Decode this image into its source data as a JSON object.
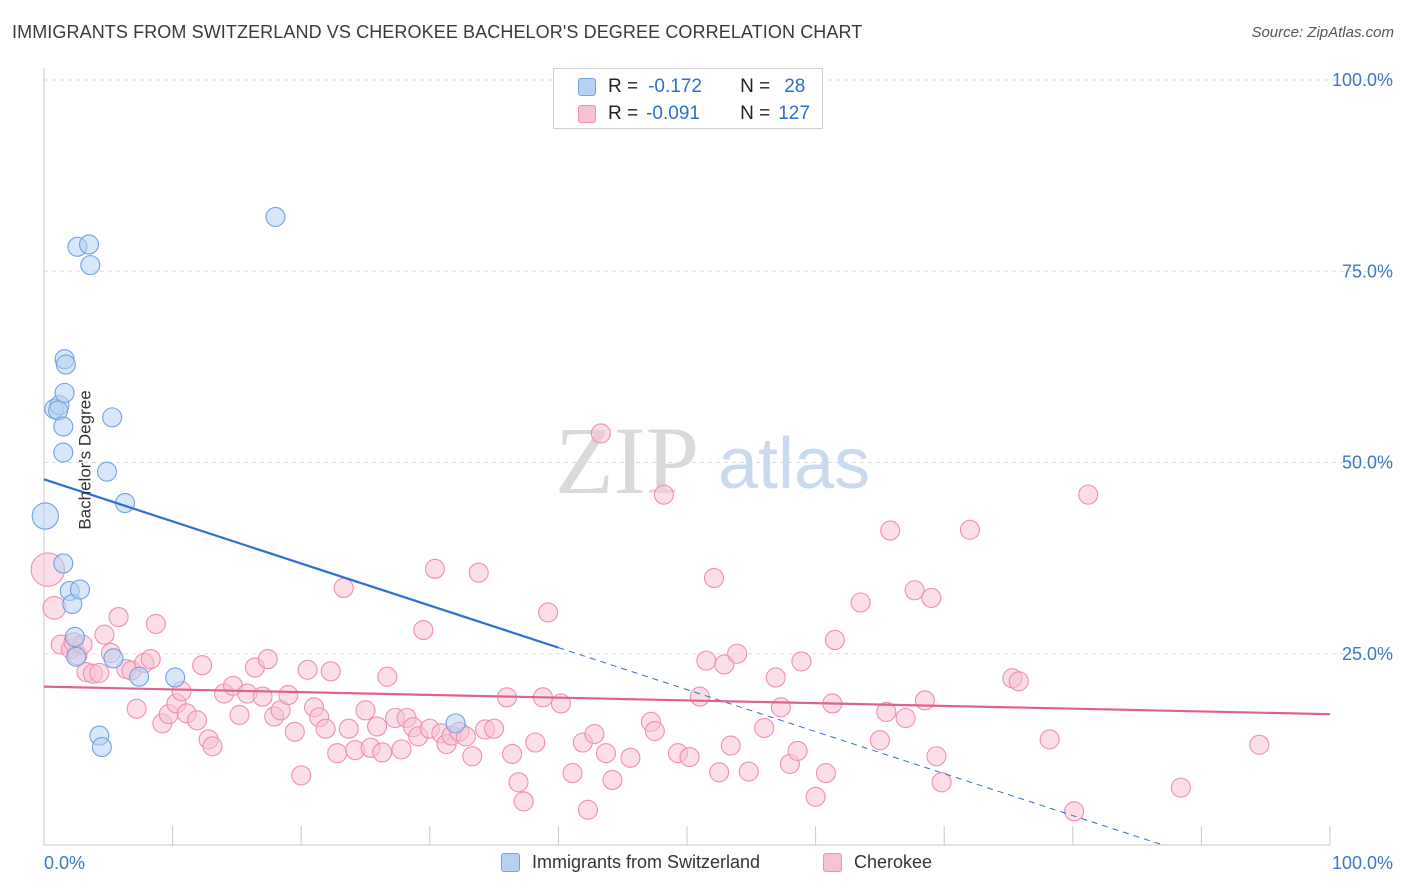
{
  "title": "IMMIGRANTS FROM SWITZERLAND VS CHEROKEE BACHELOR'S DEGREE CORRELATION CHART",
  "source": "Source: ZipAtlas.com",
  "watermark": {
    "zip": "ZIP",
    "atlas": "atlas"
  },
  "legend": {
    "rows": [
      {
        "r_label": "R =",
        "r_value": "-0.172",
        "n_label": "N =",
        "n_value": "28"
      },
      {
        "r_label": "R =",
        "r_value": "-0.091",
        "n_label": "N =",
        "n_value": "127"
      }
    ]
  },
  "chart_data": {
    "type": "scatter",
    "title": "IMMIGRANTS FROM SWITZERLAND VS CHEROKEE BACHELOR'S DEGREE CORRELATION CHART",
    "xlabel": "",
    "ylabel": "Bachelor's Degree",
    "xlim": [
      0,
      100
    ],
    "ylim": [
      0,
      100
    ],
    "x_tick_labels": [
      "0.0%",
      "100.0%"
    ],
    "y_tick_labels": [
      "25.0%",
      "50.0%",
      "75.0%",
      "100.0%"
    ],
    "y_ticks": [
      25,
      50,
      75,
      100
    ],
    "grid": true,
    "legend_position": "top-center and bottom",
    "series": [
      {
        "name": "Immigrants from Switzerland",
        "color": "#6fa3e0",
        "fill": "#b7d1f2",
        "trend": {
          "x0": 0,
          "y0": 47.8,
          "x1": 40,
          "y1": 25.8,
          "dashed_to_x": 87,
          "dashed_to_y": 0
        },
        "points": [
          [
            0.1,
            43.0,
            14
          ],
          [
            0.8,
            57.0,
            10
          ],
          [
            1.2,
            57.5,
            10
          ],
          [
            1.5,
            51.3,
            10
          ],
          [
            1.1,
            56.8,
            10
          ],
          [
            1.5,
            54.7,
            10
          ],
          [
            1.6,
            59.1,
            10
          ],
          [
            1.5,
            36.8,
            10
          ],
          [
            1.6,
            63.5,
            10
          ],
          [
            1.7,
            62.8,
            10
          ],
          [
            2.0,
            33.2,
            10
          ],
          [
            2.2,
            31.5,
            10
          ],
          [
            2.4,
            27.2,
            10
          ],
          [
            2.5,
            24.6,
            10
          ],
          [
            2.6,
            78.2,
            10
          ],
          [
            2.8,
            33.4,
            10
          ],
          [
            3.5,
            78.5,
            10
          ],
          [
            3.6,
            75.8,
            10
          ],
          [
            4.3,
            14.3,
            10
          ],
          [
            4.5,
            12.8,
            10
          ],
          [
            4.9,
            48.8,
            10
          ],
          [
            5.3,
            55.9,
            10
          ],
          [
            5.4,
            24.4,
            10
          ],
          [
            6.3,
            44.7,
            10
          ],
          [
            7.4,
            22.0,
            10
          ],
          [
            10.2,
            21.9,
            10
          ],
          [
            18.0,
            82.1,
            10
          ],
          [
            32.0,
            15.9,
            10
          ]
        ]
      },
      {
        "name": "Cherokee",
        "color": "#f08fb0",
        "fill": "#f7c3d4",
        "trend": {
          "x0": 0,
          "y0": 20.7,
          "x1": 100,
          "y1": 17.1
        },
        "points": [
          [
            0.3,
            36.0,
            18
          ],
          [
            0.8,
            31.0,
            12
          ],
          [
            1.3,
            26.2,
            10
          ],
          [
            2.1,
            25.6,
            10
          ],
          [
            2.3,
            26.5,
            10
          ],
          [
            2.6,
            24.8,
            10
          ],
          [
            3.0,
            26.2,
            10
          ],
          [
            3.3,
            22.6,
            10
          ],
          [
            3.8,
            22.4,
            10
          ],
          [
            4.3,
            22.5,
            10
          ],
          [
            4.7,
            27.5,
            10
          ],
          [
            5.2,
            25.1,
            10
          ],
          [
            5.8,
            29.8,
            10
          ],
          [
            6.4,
            23.0,
            10
          ],
          [
            6.8,
            22.8,
            10
          ],
          [
            7.2,
            17.8,
            10
          ],
          [
            7.8,
            23.8,
            10
          ],
          [
            8.3,
            24.3,
            10
          ],
          [
            8.7,
            28.9,
            10
          ],
          [
            9.2,
            15.9,
            10
          ],
          [
            9.7,
            17.1,
            10
          ],
          [
            10.3,
            18.5,
            10
          ],
          [
            10.7,
            20.1,
            10
          ],
          [
            11.1,
            17.2,
            10
          ],
          [
            11.9,
            16.3,
            10
          ],
          [
            12.3,
            23.5,
            10
          ],
          [
            12.8,
            13.8,
            10
          ],
          [
            13.1,
            12.9,
            10
          ],
          [
            14.0,
            19.8,
            10
          ],
          [
            14.7,
            20.8,
            10
          ],
          [
            15.2,
            17.0,
            10
          ],
          [
            15.8,
            19.8,
            10
          ],
          [
            16.4,
            23.2,
            10
          ],
          [
            17.0,
            19.4,
            10
          ],
          [
            17.4,
            24.3,
            10
          ],
          [
            17.9,
            16.8,
            10
          ],
          [
            18.4,
            17.6,
            10
          ],
          [
            19.0,
            19.6,
            10
          ],
          [
            19.5,
            14.8,
            10
          ],
          [
            20.0,
            9.1,
            10
          ],
          [
            20.5,
            22.9,
            10
          ],
          [
            21.0,
            18.0,
            10
          ],
          [
            21.4,
            16.7,
            10
          ],
          [
            21.9,
            15.2,
            10
          ],
          [
            22.3,
            22.7,
            10
          ],
          [
            22.8,
            12.0,
            10
          ],
          [
            23.3,
            33.6,
            10
          ],
          [
            23.7,
            15.2,
            10
          ],
          [
            24.2,
            12.4,
            10
          ],
          [
            25.0,
            17.6,
            10
          ],
          [
            25.4,
            12.7,
            10
          ],
          [
            25.9,
            15.5,
            10
          ],
          [
            26.3,
            12.1,
            10
          ],
          [
            26.7,
            22.0,
            10
          ],
          [
            27.3,
            16.6,
            10
          ],
          [
            27.8,
            12.5,
            10
          ],
          [
            28.2,
            16.6,
            10
          ],
          [
            28.7,
            15.4,
            10
          ],
          [
            29.1,
            14.2,
            10
          ],
          [
            29.5,
            28.1,
            10
          ],
          [
            30.0,
            15.2,
            10
          ],
          [
            30.4,
            36.1,
            10
          ],
          [
            30.9,
            14.6,
            10
          ],
          [
            31.3,
            13.2,
            10
          ],
          [
            31.7,
            14.3,
            10
          ],
          [
            32.3,
            14.8,
            10
          ],
          [
            32.8,
            14.2,
            10
          ],
          [
            33.3,
            11.6,
            10
          ],
          [
            33.8,
            35.6,
            10
          ],
          [
            34.3,
            15.1,
            10
          ],
          [
            35.0,
            15.2,
            10
          ],
          [
            36.0,
            19.3,
            10
          ],
          [
            36.4,
            11.9,
            10
          ],
          [
            36.9,
            8.2,
            10
          ],
          [
            37.3,
            5.7,
            10
          ],
          [
            38.2,
            13.4,
            10
          ],
          [
            38.8,
            19.3,
            10
          ],
          [
            39.2,
            30.4,
            10
          ],
          [
            40.2,
            18.5,
            10
          ],
          [
            41.1,
            9.4,
            10
          ],
          [
            41.9,
            13.4,
            10
          ],
          [
            42.3,
            4.6,
            10
          ],
          [
            42.8,
            14.5,
            10
          ],
          [
            43.3,
            53.8,
            10
          ],
          [
            43.7,
            12.0,
            10
          ],
          [
            44.2,
            8.5,
            10
          ],
          [
            45.6,
            11.4,
            10
          ],
          [
            47.2,
            16.1,
            10
          ],
          [
            47.5,
            14.9,
            10
          ],
          [
            48.2,
            45.8,
            10
          ],
          [
            49.3,
            12.0,
            10
          ],
          [
            50.2,
            11.5,
            10
          ],
          [
            51.0,
            19.4,
            10
          ],
          [
            51.5,
            24.1,
            10
          ],
          [
            52.1,
            34.9,
            10
          ],
          [
            52.5,
            9.5,
            10
          ],
          [
            52.9,
            23.6,
            10
          ],
          [
            53.4,
            13.0,
            10
          ],
          [
            53.9,
            25.0,
            10
          ],
          [
            54.8,
            9.6,
            10
          ],
          [
            56.0,
            15.3,
            10
          ],
          [
            56.9,
            21.9,
            10
          ],
          [
            57.3,
            18.0,
            10
          ],
          [
            58.0,
            10.6,
            10
          ],
          [
            58.6,
            12.3,
            10
          ],
          [
            58.9,
            24.0,
            10
          ],
          [
            60.0,
            6.3,
            10
          ],
          [
            60.8,
            9.4,
            10
          ],
          [
            61.3,
            18.5,
            10
          ],
          [
            61.5,
            26.8,
            10
          ],
          [
            63.5,
            31.7,
            10
          ],
          [
            65.0,
            13.7,
            10
          ],
          [
            65.5,
            17.4,
            10
          ],
          [
            65.8,
            41.1,
            10
          ],
          [
            67.0,
            16.6,
            10
          ],
          [
            67.7,
            33.3,
            10
          ],
          [
            68.5,
            18.9,
            10
          ],
          [
            69.0,
            32.3,
            10
          ],
          [
            69.4,
            11.6,
            10
          ],
          [
            69.8,
            8.2,
            10
          ],
          [
            72.0,
            41.2,
            10
          ],
          [
            75.3,
            21.8,
            10
          ],
          [
            75.8,
            21.4,
            10
          ],
          [
            78.2,
            13.8,
            10
          ],
          [
            80.1,
            4.4,
            10
          ],
          [
            81.2,
            45.8,
            10
          ],
          [
            88.4,
            7.5,
            10
          ],
          [
            94.5,
            13.1,
            10
          ]
        ]
      }
    ]
  },
  "bottom_legend": [
    {
      "label": "Immigrants from Switzerland"
    },
    {
      "label": "Cherokee"
    }
  ]
}
